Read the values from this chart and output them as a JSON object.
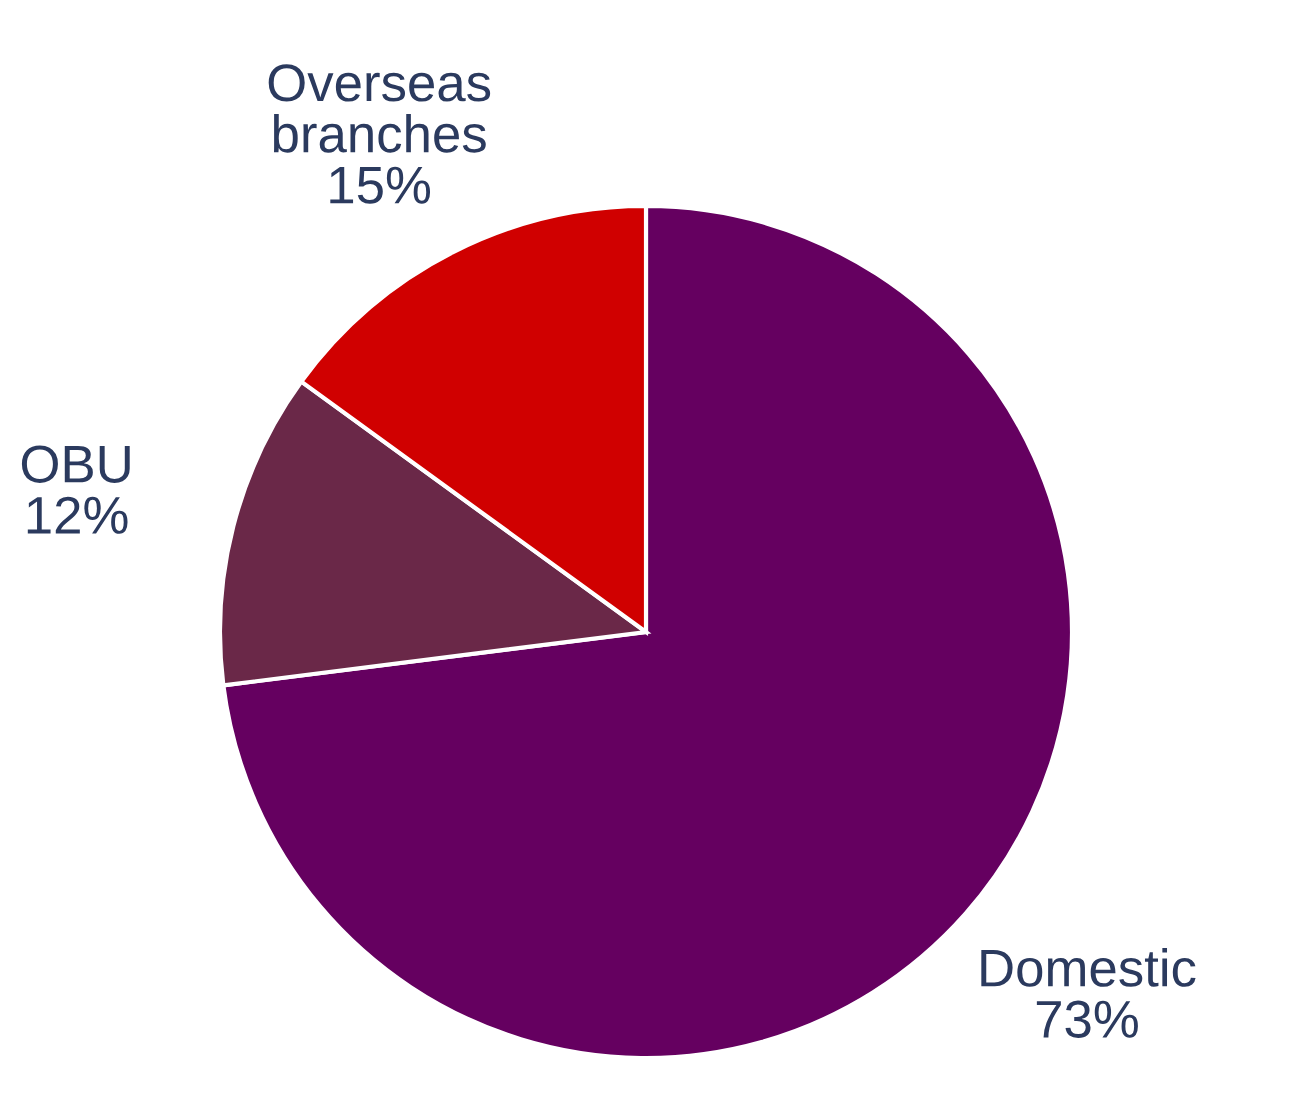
{
  "chart_data": {
    "type": "pie",
    "categories": [
      "Domestic",
      "OBU",
      "Overseas\nbranches"
    ],
    "values": [
      73,
      12,
      15
    ],
    "colors": [
      "#650060",
      "#6a2848",
      "#d00000"
    ],
    "value_labels": [
      "73%",
      "12%",
      "15%"
    ],
    "legend": false
  }
}
